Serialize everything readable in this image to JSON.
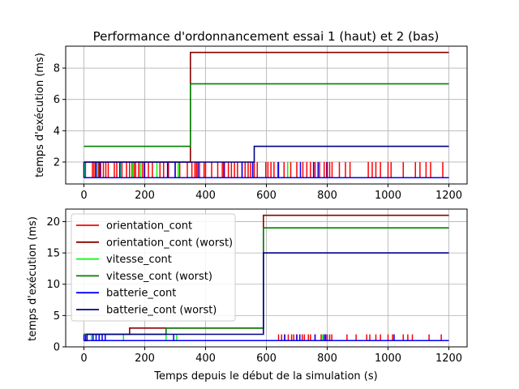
{
  "figure": {
    "title": "Performance d'ordonnancement essai 1 (haut) et 2 (bas)",
    "xlabel": "Temps depuis le début de la simulation (s)"
  },
  "colors": {
    "orientation_cont": "#ff0000",
    "orientation_cont_worst": "#8b0000",
    "vitesse_cont": "#00ff00",
    "vitesse_cont_worst": "#008000",
    "batterie_cont": "#0000ff",
    "batterie_cont_worst": "#00008b",
    "grid": "#b0b0b0"
  },
  "chart_data": [
    {
      "type": "line",
      "title": "Performance d'ordonnancement essai 1 (haut) et 2 (bas)",
      "xlabel": "",
      "ylabel": "temps d'exécution (ms)",
      "xlim": [
        -60,
        1260
      ],
      "ylim": [
        0.6,
        9.4
      ],
      "xticks": [
        0,
        200,
        400,
        600,
        800,
        1000,
        1200
      ],
      "yticks": [
        2,
        4,
        6,
        8
      ],
      "grid": true,
      "step_series": [
        {
          "key": "orientation_cont_worst",
          "values": [
            [
              0,
              2
            ],
            [
              350,
              2
            ],
            [
              350,
              9
            ],
            [
              1200,
              9
            ]
          ]
        },
        {
          "key": "vitesse_cont_worst",
          "values": [
            [
              0,
              3
            ],
            [
              350,
              3
            ],
            [
              350,
              7
            ],
            [
              1200,
              7
            ]
          ]
        },
        {
          "key": "batterie_cont_worst",
          "values": [
            [
              0,
              2
            ],
            [
              560,
              2
            ],
            [
              560,
              3
            ],
            [
              1200,
              3
            ]
          ]
        }
      ],
      "spike_series": [
        {
          "key": "orientation_cont",
          "base": 1,
          "peak": 2,
          "x": [
            0,
            5,
            28,
            33,
            38,
            48,
            55,
            64,
            72,
            80,
            100,
            108,
            125,
            140,
            150,
            158,
            165,
            170,
            180,
            192,
            200,
            212,
            225,
            250,
            262,
            278,
            300,
            315,
            340,
            355,
            365,
            370,
            380,
            395,
            400,
            420,
            440,
            455,
            462,
            475,
            485,
            495,
            505,
            520,
            530,
            540,
            548,
            560,
            570,
            598,
            605,
            615,
            625,
            638,
            658,
            680,
            700,
            720,
            733,
            745,
            760,
            775,
            790,
            798,
            808,
            816,
            840,
            860,
            875,
            935,
            948,
            960,
            975,
            1000,
            1010,
            1050,
            1090,
            1105,
            1125,
            1140,
            1180
          ]
        },
        {
          "key": "vitesse_cont",
          "base": 1,
          "peak": 2,
          "x": [
            2,
            45,
            120,
            160,
            185,
            240,
            310,
            670
          ]
        },
        {
          "key": "batterie_cont",
          "base": 1,
          "peak": 2,
          "x": [
            0,
            40,
            52,
            118,
            198,
            275,
            300,
            375,
            460,
            520,
            555,
            640,
            712,
            755,
            770,
            800
          ]
        }
      ]
    },
    {
      "type": "line",
      "title": "",
      "xlabel": "Temps depuis le début de la simulation (s)",
      "ylabel": "temps d'exécution (ms)",
      "xlim": [
        -60,
        1260
      ],
      "ylim": [
        0,
        22
      ],
      "xticks": [
        0,
        200,
        400,
        600,
        800,
        1000,
        1200
      ],
      "yticks": [
        0,
        5,
        10,
        15,
        20
      ],
      "grid": true,
      "legend_position": "top-left",
      "legend": [
        {
          "key": "orientation_cont",
          "label": "orientation_cont"
        },
        {
          "key": "orientation_cont_worst",
          "label": "orientation_cont (worst)"
        },
        {
          "key": "vitesse_cont",
          "label": "vitesse_cont"
        },
        {
          "key": "vitesse_cont_worst",
          "label": "vitesse_cont (worst)"
        },
        {
          "key": "batterie_cont",
          "label": "batterie_cont"
        },
        {
          "key": "batterie_cont_worst",
          "label": "batterie_cont (worst)"
        }
      ],
      "step_series": [
        {
          "key": "orientation_cont_worst",
          "values": [
            [
              0,
              2
            ],
            [
              150,
              2
            ],
            [
              150,
              3
            ],
            [
              590,
              3
            ],
            [
              590,
              21
            ],
            [
              1200,
              21
            ]
          ]
        },
        {
          "key": "vitesse_cont_worst",
          "values": [
            [
              0,
              2
            ],
            [
              270,
              2
            ],
            [
              270,
              3
            ],
            [
              590,
              3
            ],
            [
              590,
              19
            ],
            [
              1200,
              19
            ]
          ]
        },
        {
          "key": "batterie_cont_worst",
          "values": [
            [
              0,
              1
            ],
            [
              10,
              1
            ],
            [
              10,
              2
            ],
            [
              590,
              2
            ],
            [
              590,
              15
            ],
            [
              1200,
              15
            ]
          ]
        }
      ],
      "spike_series": [
        {
          "key": "orientation_cont",
          "base": 1,
          "peak": 2,
          "x": [
            640,
            650,
            660,
            672,
            683,
            690,
            700,
            718,
            725,
            738,
            745,
            760,
            780,
            790,
            800,
            808,
            815,
            865,
            895,
            930,
            940,
            960,
            975,
            1000,
            1015,
            1050,
            1065,
            1080,
            1135,
            1175
          ]
        },
        {
          "key": "vitesse_cont",
          "base": 1,
          "peak": 2,
          "x": [
            10,
            25,
            130,
            270,
            305,
            785
          ]
        },
        {
          "key": "batterie_cont",
          "base": 1,
          "peak": 2,
          "x": [
            0,
            5,
            30,
            40,
            50,
            60,
            70,
            295,
            660,
            700,
            710,
            760,
            790,
            795,
            1020
          ]
        }
      ]
    }
  ]
}
